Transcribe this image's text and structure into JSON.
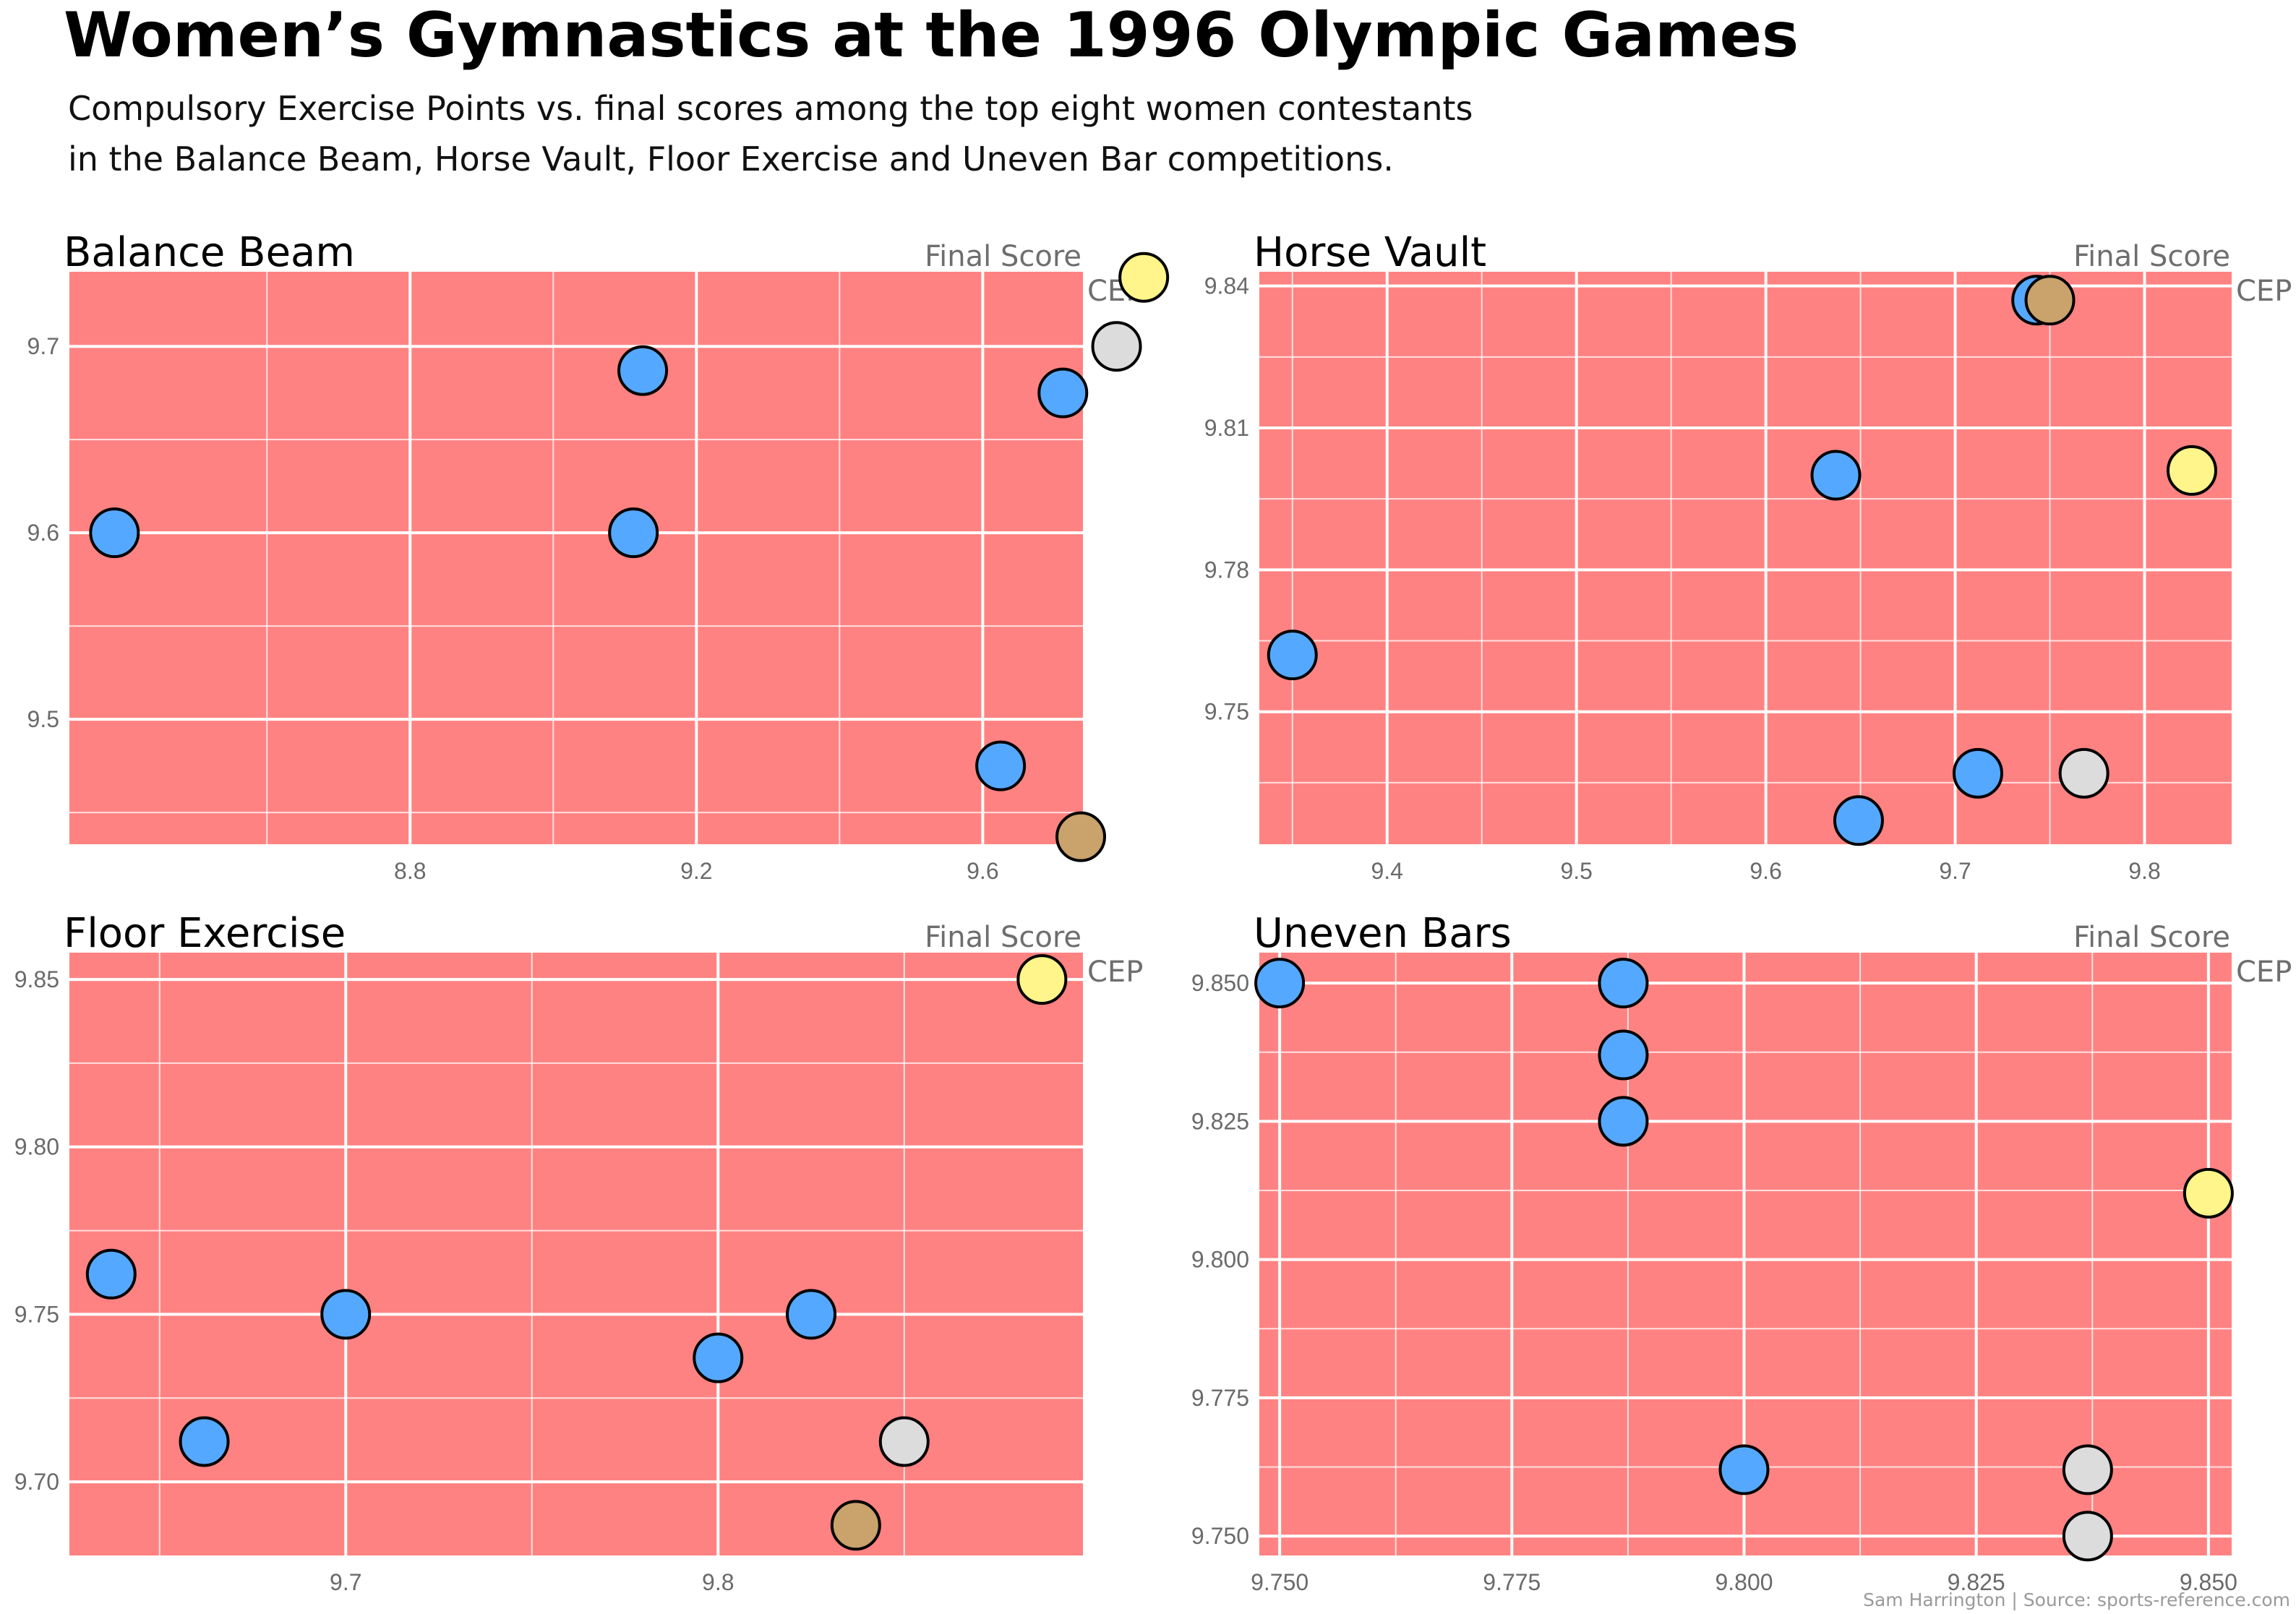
{
  "title": "Women’s Gymnastics at the 1996 Olympic Games",
  "subtitle_line1": "Compulsory Exercise Points vs. final scores among the top eight women contestants",
  "subtitle_line2": "in the Balance Beam, Horse Vault, Floor Exercise and Uneven Bar competitions.",
  "credit": "Sam Harrington | Source: sports-reference.com",
  "colors": {
    "panel_background": "#ff8282",
    "grid": "#ffffff",
    "point_default": "#55a8ff",
    "point_gold": "#fff58a",
    "point_silver": "#dcdcdc",
    "point_bronze": "#c9a26c",
    "point_outline": "#000000"
  },
  "chart_data": [
    {
      "type": "scatter",
      "title": "Balance Beam",
      "xlabel": "Final Score",
      "ylabel": "CEP",
      "xlim": [
        8.32,
        9.74
      ],
      "ylim": [
        9.433,
        9.74
      ],
      "xticks": [
        8.8,
        9.2,
        9.6
      ],
      "xtick_labels": [
        "8.8",
        "9.2",
        "9.6"
      ],
      "yticks": [
        9.5,
        9.6,
        9.7
      ],
      "ytick_labels": [
        "9.5",
        "9.6",
        "9.7"
      ],
      "points": [
        {
          "x": 8.387,
          "y": 9.6,
          "medal": "none"
        },
        {
          "x": 9.112,
          "y": 9.6,
          "medal": "none"
        },
        {
          "x": 9.125,
          "y": 9.687,
          "medal": "none"
        },
        {
          "x": 9.625,
          "y": 9.475,
          "medal": "none"
        },
        {
          "x": 9.712,
          "y": 9.675,
          "medal": "none"
        },
        {
          "x": 9.737,
          "y": 9.437,
          "medal": "bronze"
        },
        {
          "x": 9.787,
          "y": 9.7,
          "medal": "silver"
        },
        {
          "x": 9.825,
          "y": 9.737,
          "medal": "gold"
        }
      ]
    },
    {
      "type": "scatter",
      "title": "Horse Vault",
      "xlabel": "Final Score",
      "ylabel": "CEP",
      "xlim": [
        9.331,
        9.846
      ],
      "ylim": [
        9.722,
        9.843
      ],
      "xticks": [
        9.4,
        9.5,
        9.6,
        9.7,
        9.8
      ],
      "xtick_labels": [
        "9.4",
        "9.5",
        "9.6",
        "9.7",
        "9.8"
      ],
      "yticks": [
        9.75,
        9.78,
        9.81,
        9.84
      ],
      "ytick_labels": [
        "9.75",
        "9.78",
        "9.81",
        "9.84"
      ],
      "points": [
        {
          "x": 9.35,
          "y": 9.762,
          "medal": "none"
        },
        {
          "x": 9.637,
          "y": 9.8,
          "medal": "none"
        },
        {
          "x": 9.649,
          "y": 9.727,
          "medal": "none"
        },
        {
          "x": 9.712,
          "y": 9.737,
          "medal": "none"
        },
        {
          "x": 9.743,
          "y": 9.837,
          "medal": "none"
        },
        {
          "x": 9.768,
          "y": 9.737,
          "medal": "silver"
        },
        {
          "x": 9.75,
          "y": 9.837,
          "medal": "bronze"
        },
        {
          "x": 9.825,
          "y": 9.801,
          "medal": "gold"
        }
      ]
    },
    {
      "type": "scatter",
      "title": "Floor Exercise",
      "xlabel": "Final Score",
      "ylabel": "CEP",
      "xlim": [
        9.625,
        9.898
      ],
      "ylim": [
        9.678,
        9.858
      ],
      "xticks": [
        9.7,
        9.8
      ],
      "xtick_labels": [
        "9.7",
        "9.8"
      ],
      "yticks": [
        9.7,
        9.75,
        9.8,
        9.85
      ],
      "ytick_labels": [
        "9.70",
        "9.75",
        "9.80",
        "9.85"
      ],
      "points": [
        {
          "x": 9.637,
          "y": 9.762,
          "medal": "none"
        },
        {
          "x": 9.662,
          "y": 9.712,
          "medal": "none"
        },
        {
          "x": 9.7,
          "y": 9.75,
          "medal": "none"
        },
        {
          "x": 9.8,
          "y": 9.737,
          "medal": "none"
        },
        {
          "x": 9.825,
          "y": 9.75,
          "medal": "none"
        },
        {
          "x": 9.85,
          "y": 9.712,
          "medal": "silver"
        },
        {
          "x": 9.837,
          "y": 9.687,
          "medal": "bronze"
        },
        {
          "x": 9.887,
          "y": 9.85,
          "medal": "gold"
        }
      ]
    },
    {
      "type": "scatter",
      "title": "Uneven Bars",
      "xlabel": "Final Score",
      "ylabel": "CEP",
      "xlim": [
        9.7475,
        9.8525
      ],
      "ylim": [
        9.7465,
        9.8555
      ],
      "xticks": [
        9.75,
        9.775,
        9.8,
        9.825,
        9.85
      ],
      "xtick_labels": [
        "9.750",
        "9.775",
        "9.800",
        "9.825",
        "9.850"
      ],
      "yticks": [
        9.75,
        9.775,
        9.8,
        9.825,
        9.85
      ],
      "ytick_labels": [
        "9.750",
        "9.775",
        "9.800",
        "9.825",
        "9.850"
      ],
      "points": [
        {
          "x": 9.75,
          "y": 9.85,
          "medal": "none"
        },
        {
          "x": 9.787,
          "y": 9.85,
          "medal": "none"
        },
        {
          "x": 9.787,
          "y": 9.837,
          "medal": "none"
        },
        {
          "x": 9.787,
          "y": 9.825,
          "medal": "none"
        },
        {
          "x": 9.8,
          "y": 9.762,
          "medal": "none"
        },
        {
          "x": 9.837,
          "y": 9.762,
          "medal": "silver"
        },
        {
          "x": 9.837,
          "y": 9.75,
          "medal": "silver"
        },
        {
          "x": 9.85,
          "y": 9.812,
          "medal": "gold"
        }
      ]
    }
  ]
}
